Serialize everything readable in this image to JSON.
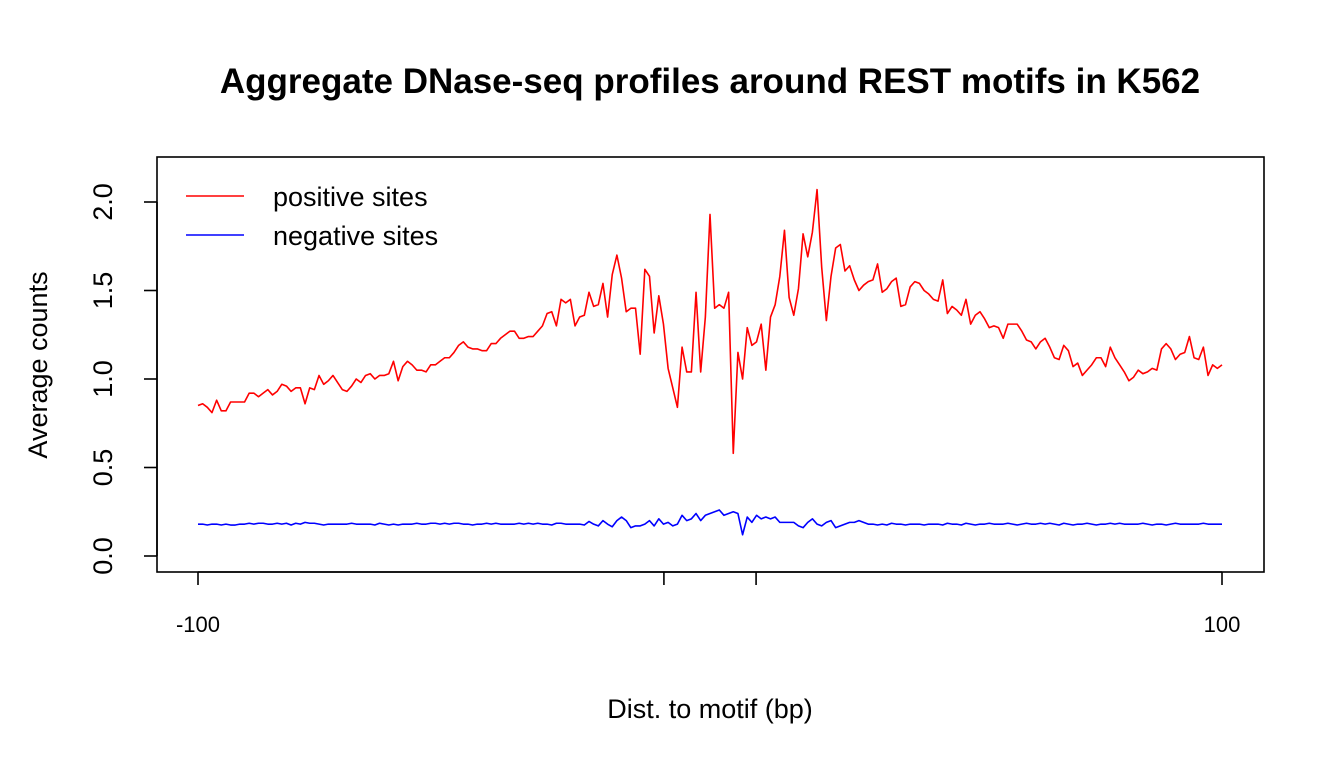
{
  "chart_data": {
    "type": "line",
    "title": "Aggregate DNase-seq profiles around REST motifs in K562",
    "xlabel": "Dist. to motif (bp)",
    "ylabel": "Average counts",
    "xlim": [
      -100,
      100
    ],
    "ylim": [
      0.0,
      2.2
    ],
    "x_ticks": [
      -100,
      -9,
      9,
      100
    ],
    "x_tick_labels": [
      "-100",
      "",
      "",
      "100"
    ],
    "y_ticks": [
      0.0,
      0.5,
      1.0,
      1.5,
      2.0
    ],
    "y_tick_labels": [
      "0.0",
      "0.5",
      "1.0",
      "1.5",
      "2.0"
    ],
    "grid": false,
    "legend_position": "top-left",
    "x_step": 1,
    "series": [
      {
        "name": "positive sites",
        "color": "#ff0000",
        "values": [
          0.85,
          0.86,
          0.84,
          0.81,
          0.88,
          0.82,
          0.82,
          0.87,
          0.87,
          0.87,
          0.87,
          0.92,
          0.92,
          0.9,
          0.92,
          0.94,
          0.91,
          0.93,
          0.97,
          0.96,
          0.93,
          0.95,
          0.95,
          0.86,
          0.95,
          0.94,
          1.02,
          0.97,
          0.99,
          1.02,
          0.98,
          0.94,
          0.93,
          0.96,
          1.0,
          0.98,
          1.02,
          1.03,
          1.0,
          1.02,
          1.02,
          1.03,
          1.1,
          0.99,
          1.07,
          1.1,
          1.08,
          1.05,
          1.05,
          1.04,
          1.08,
          1.08,
          1.1,
          1.12,
          1.12,
          1.15,
          1.19,
          1.21,
          1.18,
          1.17,
          1.17,
          1.16,
          1.16,
          1.2,
          1.2,
          1.23,
          1.25,
          1.27,
          1.27,
          1.23,
          1.23,
          1.24,
          1.24,
          1.27,
          1.3,
          1.37,
          1.38,
          1.3,
          1.45,
          1.43,
          1.45,
          1.3,
          1.35,
          1.36,
          1.49,
          1.41,
          1.42,
          1.54,
          1.35,
          1.59,
          1.7,
          1.57,
          1.38,
          1.4,
          1.4,
          1.14,
          1.62,
          1.58,
          1.26,
          1.47,
          1.31,
          1.06,
          0.95,
          0.84,
          1.18,
          1.04,
          1.04,
          1.49,
          1.04,
          1.35,
          1.93,
          1.4,
          1.42,
          1.4,
          1.49,
          0.58,
          1.15,
          1.0,
          1.29,
          1.19,
          1.21,
          1.31,
          1.05,
          1.35,
          1.42,
          1.58,
          1.84,
          1.46,
          1.36,
          1.51,
          1.82,
          1.69,
          1.83,
          2.07,
          1.63,
          1.33,
          1.58,
          1.74,
          1.76,
          1.61,
          1.64,
          1.56,
          1.5,
          1.53,
          1.55,
          1.56,
          1.65,
          1.49,
          1.51,
          1.55,
          1.57,
          1.41,
          1.42,
          1.52,
          1.55,
          1.54,
          1.5,
          1.48,
          1.45,
          1.44,
          1.56,
          1.37,
          1.41,
          1.39,
          1.36,
          1.45,
          1.31,
          1.36,
          1.38,
          1.34,
          1.29,
          1.3,
          1.29,
          1.23,
          1.31,
          1.31,
          1.31,
          1.27,
          1.22,
          1.21,
          1.17,
          1.21,
          1.23,
          1.18,
          1.12,
          1.11,
          1.19,
          1.16,
          1.07,
          1.09,
          1.02,
          1.05,
          1.08,
          1.12,
          1.12,
          1.07,
          1.18,
          1.12,
          1.08,
          1.04,
          0.99,
          1.01,
          1.05,
          1.03,
          1.04,
          1.06,
          1.05,
          1.17,
          1.2,
          1.17,
          1.11,
          1.14,
          1.15,
          1.24,
          1.12,
          1.11,
          1.18,
          1.02,
          1.08,
          1.06,
          1.08
        ]
      },
      {
        "name": "negative sites",
        "color": "#0000ff",
        "values": [
          0.18,
          0.18,
          0.175,
          0.18,
          0.18,
          0.175,
          0.18,
          0.175,
          0.175,
          0.18,
          0.18,
          0.185,
          0.18,
          0.185,
          0.185,
          0.18,
          0.18,
          0.185,
          0.18,
          0.185,
          0.175,
          0.185,
          0.18,
          0.19,
          0.185,
          0.185,
          0.18,
          0.175,
          0.18,
          0.18,
          0.18,
          0.18,
          0.18,
          0.185,
          0.18,
          0.18,
          0.18,
          0.18,
          0.175,
          0.185,
          0.18,
          0.175,
          0.18,
          0.175,
          0.18,
          0.18,
          0.18,
          0.185,
          0.18,
          0.18,
          0.185,
          0.185,
          0.18,
          0.185,
          0.18,
          0.185,
          0.185,
          0.18,
          0.18,
          0.175,
          0.18,
          0.18,
          0.185,
          0.18,
          0.185,
          0.18,
          0.18,
          0.18,
          0.18,
          0.185,
          0.18,
          0.185,
          0.18,
          0.185,
          0.18,
          0.18,
          0.175,
          0.185,
          0.185,
          0.18,
          0.18,
          0.18,
          0.18,
          0.175,
          0.195,
          0.18,
          0.17,
          0.2,
          0.18,
          0.165,
          0.2,
          0.22,
          0.2,
          0.16,
          0.17,
          0.17,
          0.18,
          0.2,
          0.17,
          0.21,
          0.18,
          0.19,
          0.17,
          0.18,
          0.23,
          0.2,
          0.21,
          0.24,
          0.2,
          0.23,
          0.24,
          0.25,
          0.26,
          0.23,
          0.24,
          0.25,
          0.24,
          0.12,
          0.22,
          0.19,
          0.23,
          0.21,
          0.22,
          0.21,
          0.22,
          0.19,
          0.19,
          0.19,
          0.19,
          0.17,
          0.16,
          0.19,
          0.21,
          0.18,
          0.17,
          0.19,
          0.2,
          0.16,
          0.17,
          0.18,
          0.19,
          0.19,
          0.2,
          0.19,
          0.18,
          0.18,
          0.175,
          0.18,
          0.175,
          0.185,
          0.18,
          0.18,
          0.175,
          0.18,
          0.18,
          0.18,
          0.175,
          0.18,
          0.18,
          0.18,
          0.175,
          0.185,
          0.18,
          0.18,
          0.175,
          0.185,
          0.18,
          0.175,
          0.18,
          0.18,
          0.185,
          0.18,
          0.18,
          0.18,
          0.185,
          0.18,
          0.175,
          0.18,
          0.185,
          0.18,
          0.18,
          0.185,
          0.18,
          0.185,
          0.18,
          0.175,
          0.185,
          0.18,
          0.175,
          0.18,
          0.18,
          0.185,
          0.18,
          0.175,
          0.18,
          0.18,
          0.185,
          0.18,
          0.185,
          0.18,
          0.18,
          0.18,
          0.18,
          0.185,
          0.18,
          0.175,
          0.18,
          0.18,
          0.175,
          0.18,
          0.185,
          0.18,
          0.18,
          0.18,
          0.18,
          0.18,
          0.185,
          0.18,
          0.18,
          0.18,
          0.18
        ]
      }
    ]
  }
}
